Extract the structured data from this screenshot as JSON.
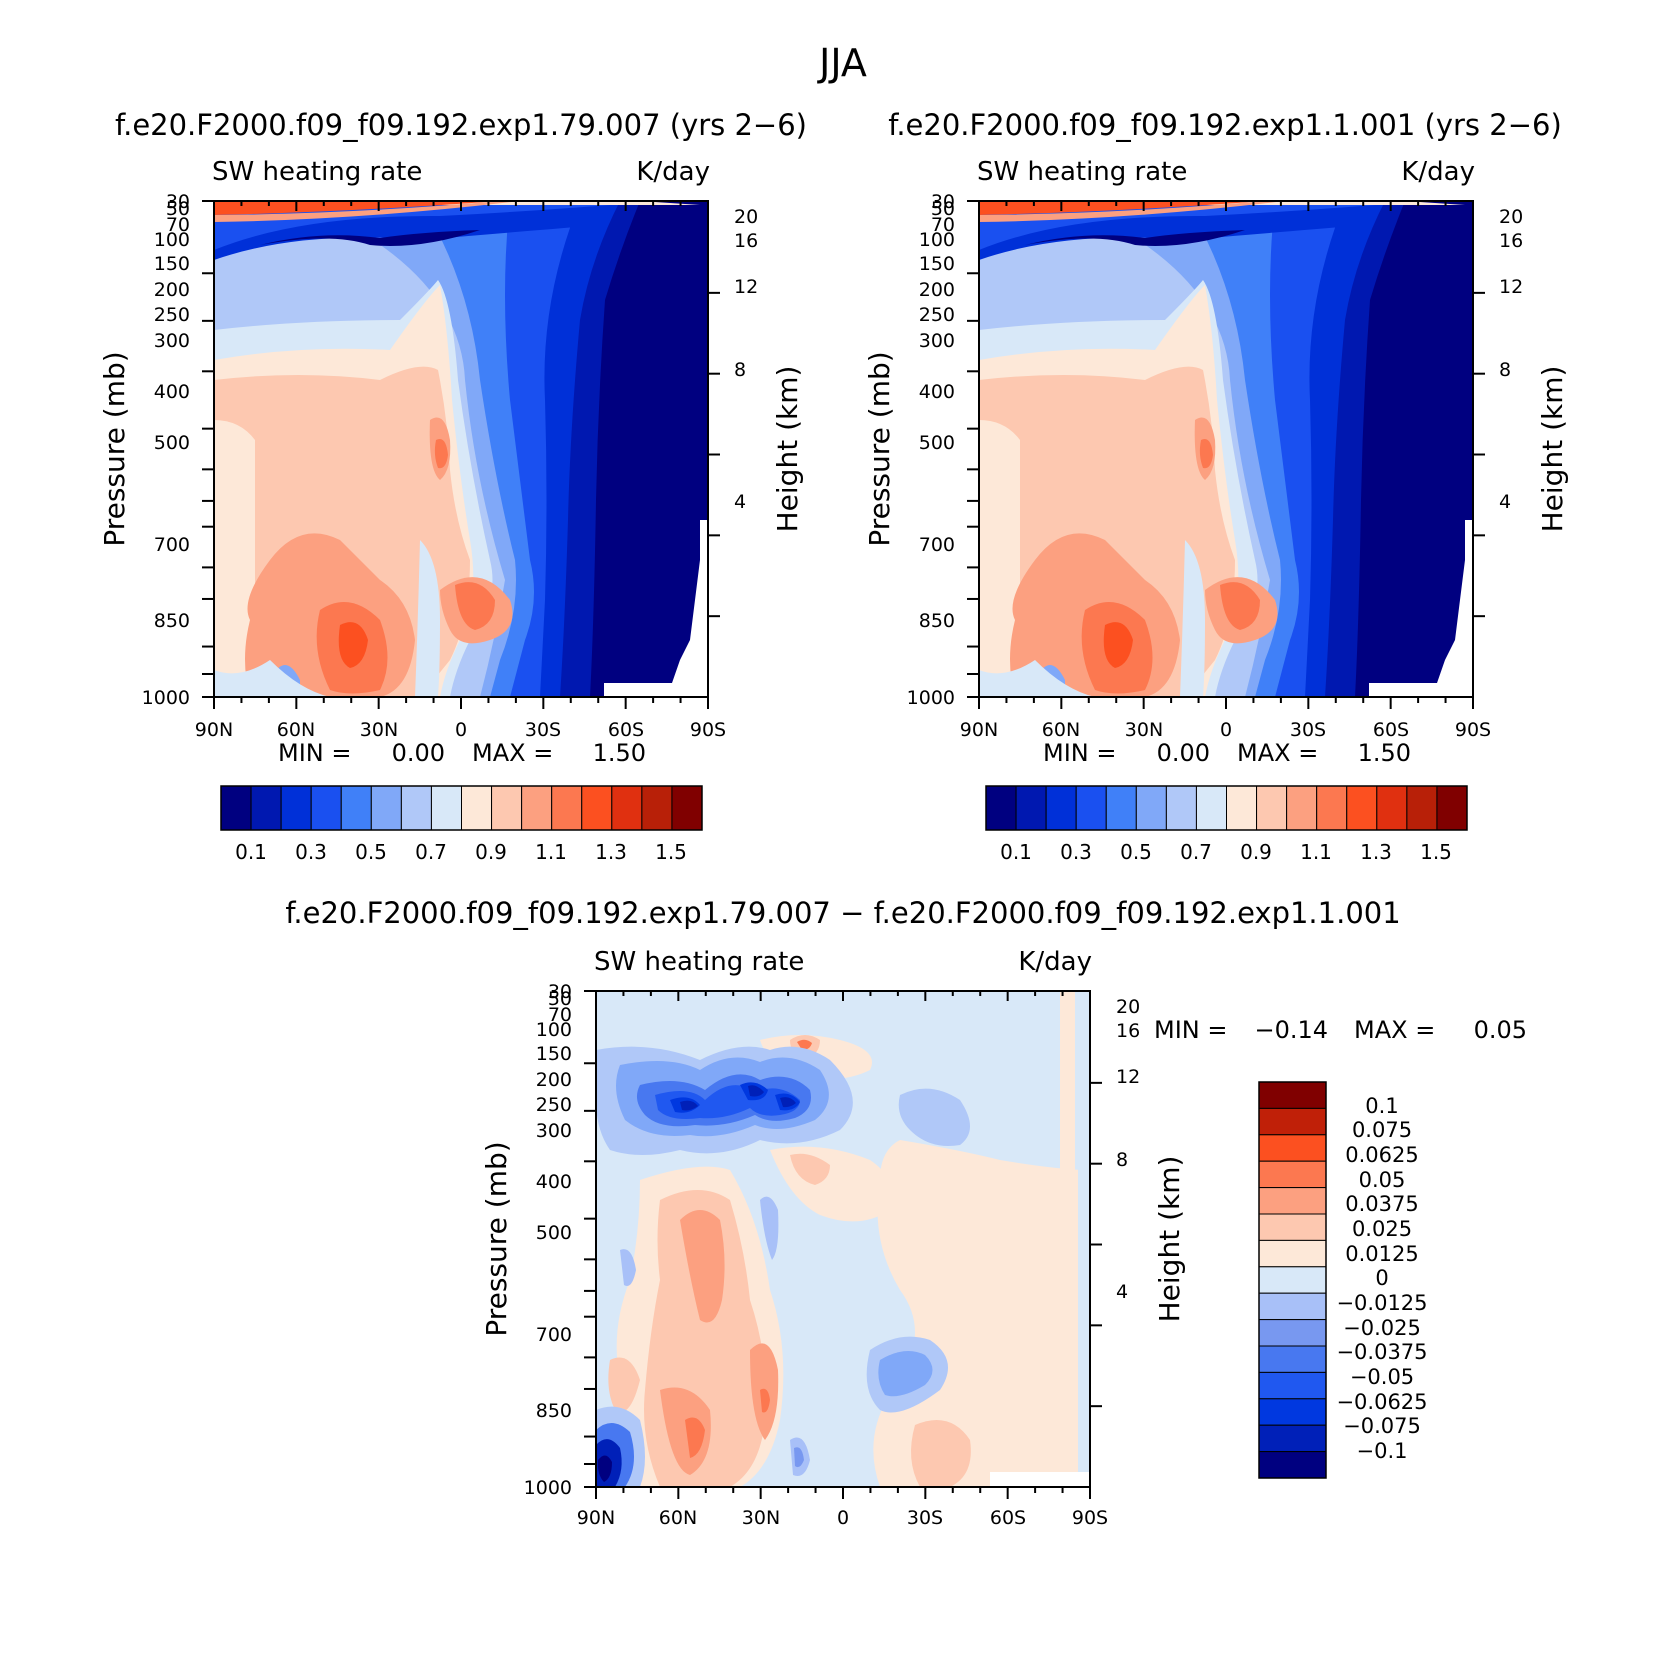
{
  "title": "JJA",
  "colors": {
    "abs_levels": [
      "#000080",
      "#0018b0",
      "#0030d8",
      "#1a50f0",
      "#4080f8",
      "#80a8f8",
      "#b0c8f8",
      "#d8e8f8",
      "#fde8d8",
      "#fdc8b0",
      "#fca080",
      "#fc7850",
      "#fc5020",
      "#e03010",
      "#b82008",
      "#800000"
    ],
    "diff_levels": [
      "#000080",
      "#0020b8",
      "#0038e0",
      "#2058f0",
      "#4878f0",
      "#7898f0",
      "#a8c0f8",
      "#d8e8f8",
      "#fde8d8",
      "#fdc8b0",
      "#fca080",
      "#fc7850",
      "#fc5020",
      "#c02008",
      "#800000"
    ]
  },
  "chart_data": [
    {
      "type": "contour",
      "name": "panel_left",
      "title": "f.e20.F2000.f09_f09.192.exp1.79.007 (yrs 2-6)",
      "variable": "SW heating rate",
      "units": "K/day",
      "ylabel": "Pressure (mb)",
      "ylabel2": "Height (km)",
      "x_ticks": [
        "90N",
        "60N",
        "30N",
        "0",
        "30S",
        "60S",
        "90S"
      ],
      "y_ticks": [
        "30",
        "50",
        "70",
        "100",
        "150",
        "200",
        "250",
        "300",
        "400",
        "500",
        "700",
        "850",
        "1000"
      ],
      "y2_ticks": [
        "20",
        "16",
        "12",
        "8",
        "4"
      ],
      "xlim": [
        90,
        -90
      ],
      "ylim": [
        1000,
        30
      ],
      "stats_min_label": "MIN =",
      "stats_min": "0.00",
      "stats_max_label": "MAX =",
      "stats_max": "1.50",
      "colorbar_labels": [
        "0.1",
        "0.3",
        "0.5",
        "0.7",
        "0.9",
        "1.1",
        "1.3",
        "1.5"
      ]
    },
    {
      "type": "contour",
      "name": "panel_right",
      "title": "f.e20.F2000.f09_f09.192.exp1.1.001 (yrs 2-6)",
      "variable": "SW heating rate",
      "units": "K/day",
      "ylabel": "Pressure (mb)",
      "ylabel2": "Height (km)",
      "x_ticks": [
        "90N",
        "60N",
        "30N",
        "0",
        "30S",
        "60S",
        "90S"
      ],
      "y_ticks": [
        "30",
        "50",
        "70",
        "100",
        "150",
        "200",
        "250",
        "300",
        "400",
        "500",
        "700",
        "850",
        "1000"
      ],
      "y2_ticks": [
        "20",
        "16",
        "12",
        "8",
        "4"
      ],
      "xlim": [
        90,
        -90
      ],
      "ylim": [
        1000,
        30
      ],
      "stats_min_label": "MIN =",
      "stats_min": "0.00",
      "stats_max_label": "MAX =",
      "stats_max": "1.50",
      "colorbar_labels": [
        "0.1",
        "0.3",
        "0.5",
        "0.7",
        "0.9",
        "1.1",
        "1.3",
        "1.5"
      ]
    },
    {
      "type": "contour",
      "name": "panel_diff",
      "title": "f.e20.F2000.f09_f09.192.exp1.79.007 - f.e20.F2000.f09_f09.192.exp1.1.001",
      "variable": "SW heating rate",
      "units": "K/day",
      "ylabel": "Pressure (mb)",
      "ylabel2": "Height (km)",
      "x_ticks": [
        "90N",
        "60N",
        "30N",
        "0",
        "30S",
        "60S",
        "90S"
      ],
      "y_ticks": [
        "30",
        "50",
        "70",
        "100",
        "150",
        "200",
        "250",
        "300",
        "400",
        "500",
        "700",
        "850",
        "1000"
      ],
      "y2_ticks": [
        "20",
        "16",
        "12",
        "8",
        "4"
      ],
      "xlim": [
        90,
        -90
      ],
      "ylim": [
        1000,
        30
      ],
      "stats_min_label": "MIN =",
      "stats_min": "-0.14",
      "stats_max_label": "MAX =",
      "stats_max": "0.05",
      "colorbar_labels": [
        "0.1",
        "0.075",
        "0.0625",
        "0.05",
        "0.0375",
        "0.025",
        "0.0125",
        "0",
        "-0.0125",
        "-0.025",
        "-0.0375",
        "-0.05",
        "-0.0625",
        "-0.075",
        "-0.1"
      ]
    }
  ]
}
